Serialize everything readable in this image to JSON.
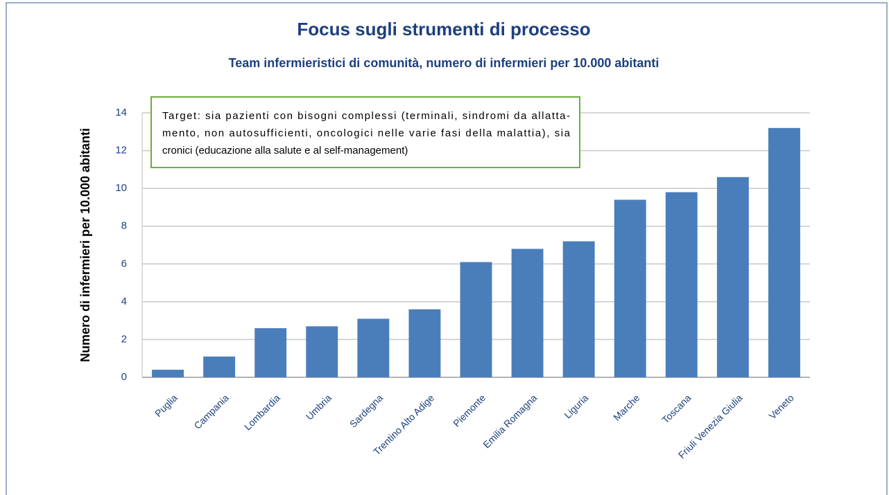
{
  "chart_data": {
    "type": "bar",
    "title": "Focus sugli strumenti di processo",
    "subtitle": "Team infermieristici di comunità, numero di infermieri per 10.000 abitanti",
    "ylabel": "Numero di infermieri per 10.000 abitanti",
    "annotation": [
      "Target: sia pazienti con bisogni complessi (terminali, sindromi da allatta-",
      "mento, non autosufficienti, oncologici nelle varie fasi della malattia), sia",
      "cronici (educazione alla salute e al self-management)"
    ],
    "categories": [
      "Puglia",
      "Campania",
      "Lombardia",
      "Umbria",
      "Sardegna",
      "Trentino Alto Adige",
      "Piemonte",
      "Emilia Romagna",
      "Liguria",
      "Marche",
      "Toscana",
      "Friuli Venezia Giulia",
      "Veneto"
    ],
    "values": [
      0.4,
      1.1,
      2.6,
      2.7,
      3.1,
      3.6,
      6.1,
      6.8,
      7.2,
      9.4,
      9.8,
      10.6,
      13.2
    ],
    "color": "#4a7ebb",
    "ylim": [
      0,
      14
    ],
    "yticks": [
      0,
      2,
      4,
      6,
      8,
      10,
      12,
      14
    ],
    "grid": true
  }
}
